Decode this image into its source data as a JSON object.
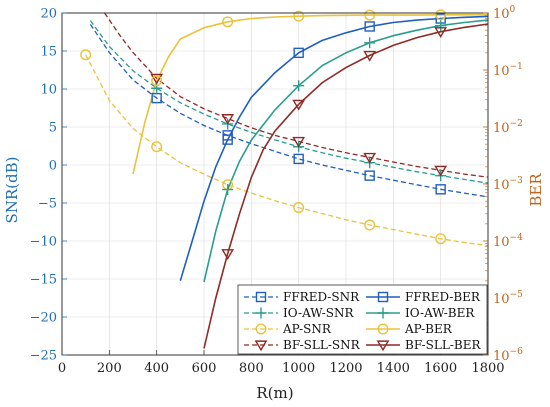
{
  "chart_data": {
    "type": "line",
    "xlabel": "R(m)",
    "ylabel_left": "SNR(dB)",
    "ylabel_right": "BER",
    "xlim": [
      0,
      1800
    ],
    "ylim_left": [
      -25,
      20
    ],
    "ylim_right_log10": [
      -6,
      0
    ],
    "x_ticks": [
      "0",
      "200",
      "400",
      "600",
      "800",
      "1000",
      "1200",
      "1400",
      "1600",
      "1800"
    ],
    "y_left_ticks": [
      "20",
      "15",
      "10",
      "5",
      "0",
      "−5",
      "−10",
      "−15",
      "−20",
      "−25"
    ],
    "y_right_ticks": [
      "10^0",
      "10^-1",
      "10^-2",
      "10^-3",
      "10^-4",
      "10^-5",
      "10^-6"
    ],
    "grid": true,
    "legend_position": "bottom-right",
    "colors": {
      "blue": "#1f5fbf",
      "teal": "#2a9d8f",
      "yellow": "#e9c33a",
      "red": "#8f2a25",
      "left_axis": "#1f6fb5",
      "right_axis": "#c0651c"
    },
    "series": [
      {
        "name": "FFRED-SNR",
        "axis": "left",
        "style": "dashed",
        "marker": "square",
        "color": "blue",
        "x": [
          120,
          200,
          300,
          400,
          500,
          600,
          700,
          800,
          900,
          1000,
          1100,
          1200,
          1300,
          1400,
          1500,
          1600,
          1700,
          1800
        ],
        "y": [
          18.5,
          14.8,
          11.2,
          8.8,
          6.8,
          5.2,
          3.9,
          2.8,
          1.8,
          0.8,
          0.0,
          -0.7,
          -1.4,
          -2.0,
          -2.6,
          -3.2,
          -3.7,
          -4.2
        ],
        "marker_x": [
          400,
          700,
          1000,
          1300,
          1600
        ],
        "marker_y": [
          8.8,
          3.9,
          0.8,
          -1.4,
          -3.2
        ]
      },
      {
        "name": "IO-AW-SNR",
        "axis": "left",
        "style": "dashed",
        "marker": "plus",
        "color": "teal",
        "x": [
          120,
          200,
          300,
          400,
          500,
          600,
          700,
          800,
          900,
          1000,
          1100,
          1200,
          1300,
          1400,
          1500,
          1600,
          1700,
          1800
        ],
        "y": [
          19.0,
          15.6,
          12.4,
          10.1,
          8.2,
          6.7,
          5.4,
          4.3,
          3.3,
          2.4,
          1.6,
          0.9,
          0.3,
          -0.3,
          -0.9,
          -1.4,
          -1.9,
          -2.4
        ],
        "marker_x": [
          400,
          700,
          1000,
          1300,
          1600
        ],
        "marker_y": [
          10.1,
          5.4,
          2.4,
          0.3,
          -1.4
        ]
      },
      {
        "name": "AP-SNR",
        "axis": "left",
        "style": "dashed",
        "marker": "circle",
        "color": "yellow",
        "x": [
          100,
          200,
          300,
          400,
          500,
          600,
          700,
          800,
          900,
          1000,
          1100,
          1200,
          1300,
          1400,
          1500,
          1600,
          1700,
          1800
        ],
        "y": [
          14.5,
          8.5,
          4.8,
          2.4,
          0.3,
          -1.2,
          -2.6,
          -3.7,
          -4.7,
          -5.6,
          -6.4,
          -7.2,
          -7.9,
          -8.5,
          -9.1,
          -9.7,
          -10.2,
          -10.6
        ],
        "marker_x": [
          100,
          400,
          700,
          1000,
          1300,
          1600
        ],
        "marker_y": [
          14.5,
          2.4,
          -2.6,
          -5.6,
          -7.9,
          -9.7
        ]
      },
      {
        "name": "BF-SLL-SNR",
        "axis": "left",
        "style": "dashed",
        "marker": "triangle-down",
        "color": "red",
        "x": [
          180,
          250,
          300,
          400,
          500,
          600,
          700,
          800,
          900,
          1000,
          1100,
          1200,
          1300,
          1400,
          1500,
          1600,
          1700,
          1800
        ],
        "y": [
          20.0,
          16.8,
          14.8,
          11.4,
          9.0,
          7.4,
          6.1,
          4.9,
          3.9,
          3.1,
          2.3,
          1.6,
          1.0,
          0.4,
          -0.2,
          -0.7,
          -1.2,
          -1.6
        ],
        "marker_x": [
          400,
          700,
          1000,
          1300,
          1600
        ],
        "marker_y": [
          11.4,
          6.1,
          3.1,
          1.0,
          -0.7
        ]
      },
      {
        "name": "FFRED-BER",
        "axis": "right",
        "style": "solid",
        "marker": "square",
        "color": "blue",
        "x": [
          500,
          550,
          600,
          650,
          700,
          750,
          800,
          900,
          1000,
          1100,
          1200,
          1300,
          1400,
          1500,
          1600,
          1700,
          1800
        ],
        "y": [
          2e-05,
          0.0001,
          0.0005,
          0.002,
          0.006,
          0.015,
          0.033,
          0.09,
          0.2,
          0.33,
          0.45,
          0.58,
          0.68,
          0.75,
          0.8,
          0.84,
          0.87
        ],
        "marker_x": [
          700,
          1000,
          1300,
          1600
        ],
        "marker_y": [
          0.006,
          0.2,
          0.58,
          0.8
        ]
      },
      {
        "name": "IO-AW-BER",
        "axis": "right",
        "style": "solid",
        "marker": "plus",
        "color": "teal",
        "x": [
          600,
          650,
          700,
          750,
          800,
          900,
          1000,
          1100,
          1200,
          1300,
          1400,
          1500,
          1600,
          1700,
          1800
        ],
        "y": [
          1.9e-05,
          0.00015,
          0.0008,
          0.0025,
          0.0059,
          0.02,
          0.053,
          0.12,
          0.2,
          0.3,
          0.4,
          0.5,
          0.6,
          0.68,
          0.75
        ],
        "marker_x": [
          700,
          1000,
          1300,
          1600
        ],
        "marker_y": [
          0.0008,
          0.053,
          0.3,
          0.6
        ]
      },
      {
        "name": "AP-BER",
        "axis": "right",
        "style": "solid",
        "marker": "circle",
        "color": "yellow",
        "x": [
          300,
          350,
          400,
          450,
          500,
          600,
          700,
          800,
          900,
          1000,
          1100,
          1200,
          1300,
          1400,
          1500,
          1600,
          1700,
          1800
        ],
        "y": [
          0.0015,
          0.012,
          0.065,
          0.17,
          0.35,
          0.55,
          0.7,
          0.8,
          0.85,
          0.88,
          0.9,
          0.91,
          0.92,
          0.92,
          0.92,
          0.93,
          0.93,
          0.93
        ],
        "marker_x": [
          400,
          700,
          1000,
          1300,
          1600
        ],
        "marker_y": [
          0.065,
          0.7,
          0.88,
          0.92,
          0.93
        ]
      },
      {
        "name": "BF-SLL-BER",
        "axis": "right",
        "style": "solid",
        "marker": "triangle-down",
        "color": "red",
        "x": [
          600,
          650,
          700,
          750,
          800,
          850,
          900,
          1000,
          1100,
          1200,
          1300,
          1400,
          1500,
          1600,
          1700,
          1800
        ],
        "y": [
          1.3e-06,
          1e-05,
          6e-05,
          0.0003,
          0.0013,
          0.004,
          0.0085,
          0.025,
          0.06,
          0.11,
          0.18,
          0.27,
          0.37,
          0.47,
          0.56,
          0.64
        ],
        "marker_x": [
          700,
          1000,
          1300,
          1600
        ],
        "marker_y": [
          6e-05,
          0.025,
          0.18,
          0.47
        ]
      }
    ]
  }
}
